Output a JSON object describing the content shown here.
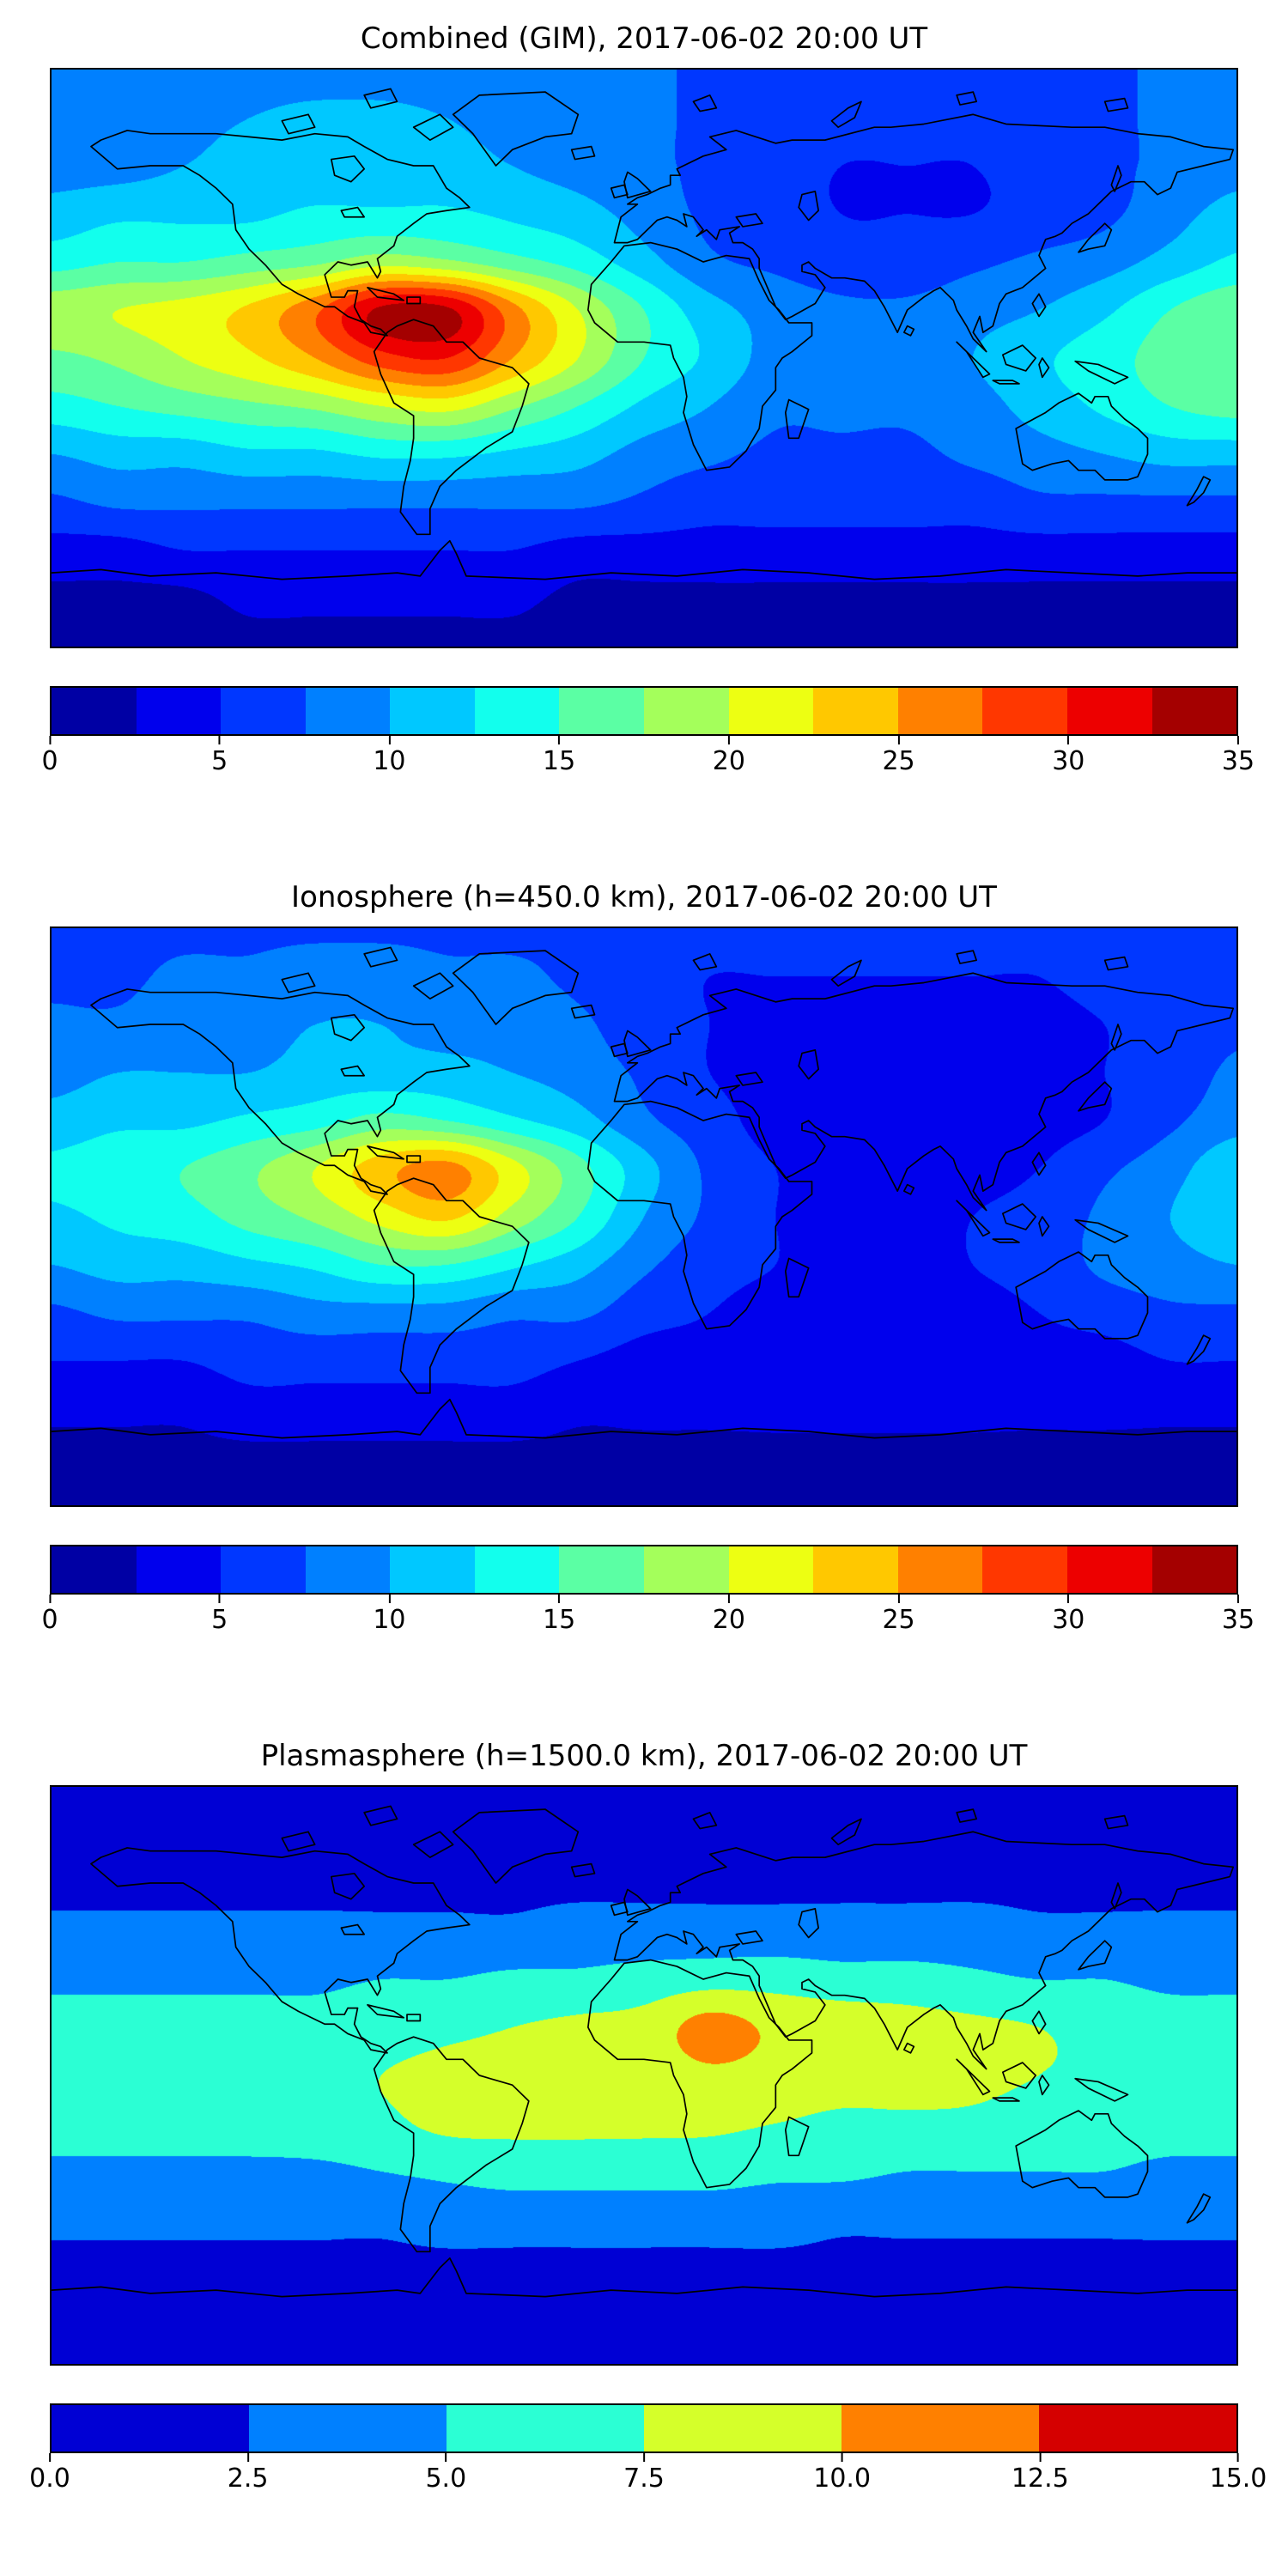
{
  "chart_data": [
    {
      "type": "heatmap",
      "title": "Combined (GIM), 2017-06-02 20:00 UT",
      "colormap": "jet",
      "projection": "equirectangular",
      "levels": {
        "min": 0,
        "max": 35,
        "step": 2.5
      },
      "colorbar_ticks": [
        "0",
        "5",
        "10",
        "15",
        "20",
        "25",
        "30",
        "35"
      ],
      "lon": [
        -180,
        -160,
        -140,
        -120,
        -100,
        -80,
        -60,
        -40,
        -20,
        0,
        20,
        40,
        60,
        80,
        100,
        120,
        140,
        160,
        180
      ],
      "lat": [
        90,
        75,
        60,
        45,
        30,
        15,
        0,
        -15,
        -30,
        -45,
        -60,
        -75,
        -90
      ],
      "values": [
        [
          8,
          8,
          8,
          8,
          8,
          8,
          8,
          8,
          8,
          8,
          7,
          7,
          7,
          7,
          7,
          7,
          7,
          8,
          8
        ],
        [
          8,
          8,
          9,
          10,
          11,
          11,
          10,
          9,
          8,
          8,
          7,
          7,
          6,
          6,
          6,
          7,
          7,
          8,
          8
        ],
        [
          9,
          9,
          10,
          11,
          11,
          11,
          11,
          10,
          9,
          8,
          7,
          6,
          5,
          5,
          5,
          6,
          7,
          8,
          9
        ],
        [
          11,
          12,
          12,
          12,
          13,
          13,
          13,
          12,
          11,
          9,
          7,
          6,
          5,
          5,
          5,
          6,
          7,
          9,
          11
        ],
        [
          14,
          15,
          15,
          16,
          17,
          19,
          18,
          16,
          14,
          11,
          8,
          7,
          6,
          6,
          7,
          8,
          9,
          11,
          13
        ],
        [
          19,
          20,
          21,
          23,
          27,
          33,
          33,
          26,
          20,
          15,
          11,
          9,
          8,
          8,
          9,
          10,
          12,
          15,
          17
        ],
        [
          17,
          18,
          20,
          22,
          25,
          29,
          30,
          25,
          20,
          15,
          12,
          9,
          8,
          9,
          10,
          12,
          14,
          16,
          17
        ],
        [
          14,
          15,
          16,
          17,
          18,
          20,
          21,
          18,
          15,
          12,
          10,
          8,
          8,
          8,
          9,
          11,
          13,
          15,
          16
        ],
        [
          10,
          11,
          11,
          12,
          12,
          13,
          13,
          12,
          11,
          9,
          8,
          7,
          7,
          7,
          8,
          9,
          10,
          11,
          11
        ],
        [
          7,
          8,
          8,
          8,
          8,
          8,
          8,
          8,
          8,
          7,
          6,
          6,
          6,
          6,
          6,
          7,
          7,
          7,
          7
        ],
        [
          4,
          4,
          5,
          5,
          5,
          5,
          5,
          5,
          4,
          4,
          4,
          4,
          4,
          4,
          4,
          4,
          4,
          4,
          4
        ],
        [
          2,
          2,
          2,
          3,
          3,
          3,
          3,
          3,
          2,
          2,
          2,
          2,
          2,
          2,
          2,
          2,
          2,
          2,
          2
        ],
        [
          2,
          2,
          2,
          2,
          2,
          2,
          2,
          2,
          2,
          2,
          2,
          2,
          2,
          2,
          2,
          2,
          2,
          2,
          2
        ]
      ]
    },
    {
      "type": "heatmap",
      "title": "Ionosphere  (h=450.0 km), 2017-06-02 20:00 UT",
      "colormap": "jet",
      "projection": "equirectangular",
      "levels": {
        "min": 0,
        "max": 35,
        "step": 2.5
      },
      "colorbar_ticks": [
        "0",
        "5",
        "10",
        "15",
        "20",
        "25",
        "30",
        "35"
      ],
      "lon": [
        -180,
        -160,
        -140,
        -120,
        -100,
        -80,
        -60,
        -40,
        -20,
        0,
        20,
        40,
        60,
        80,
        100,
        120,
        140,
        160,
        180
      ],
      "lat": [
        90,
        75,
        60,
        45,
        30,
        15,
        0,
        -15,
        -30,
        -45,
        -60,
        -75,
        -90
      ],
      "values": [
        [
          7,
          7,
          7,
          7,
          7,
          7,
          7,
          7,
          7,
          6,
          6,
          6,
          6,
          6,
          6,
          6,
          6,
          7,
          7
        ],
        [
          7,
          7,
          8,
          8,
          9,
          9,
          8,
          8,
          7,
          6,
          5,
          5,
          5,
          5,
          5,
          5,
          6,
          6,
          7
        ],
        [
          8,
          8,
          9,
          9,
          10,
          10,
          9,
          9,
          8,
          6,
          5,
          4,
          4,
          4,
          4,
          4,
          5,
          6,
          7
        ],
        [
          9,
          10,
          10,
          10,
          11,
          11,
          11,
          10,
          9,
          7,
          5,
          4,
          3,
          3,
          3,
          4,
          5,
          6,
          8
        ],
        [
          11,
          12,
          12,
          13,
          14,
          16,
          15,
          13,
          11,
          8,
          6,
          4,
          3,
          3,
          3,
          4,
          5,
          7,
          9
        ],
        [
          13,
          14,
          15,
          17,
          20,
          24,
          26,
          21,
          16,
          11,
          7,
          5,
          4,
          4,
          4,
          5,
          7,
          9,
          12
        ],
        [
          12,
          13,
          14,
          16,
          18,
          21,
          23,
          19,
          15,
          10,
          7,
          5,
          4,
          4,
          5,
          6,
          8,
          10,
          12
        ],
        [
          10,
          11,
          11,
          12,
          13,
          15,
          15,
          13,
          11,
          8,
          6,
          5,
          4,
          4,
          5,
          6,
          8,
          9,
          10
        ],
        [
          7,
          8,
          8,
          8,
          9,
          9,
          9,
          8,
          8,
          6,
          5,
          4,
          4,
          4,
          4,
          5,
          6,
          7,
          7
        ],
        [
          5,
          5,
          5,
          6,
          6,
          6,
          6,
          6,
          5,
          4,
          4,
          3,
          3,
          3,
          3,
          4,
          4,
          5,
          5
        ],
        [
          3,
          3,
          3,
          4,
          4,
          4,
          4,
          4,
          3,
          3,
          3,
          3,
          3,
          3,
          3,
          3,
          3,
          3,
          3
        ],
        [
          2,
          2,
          2,
          2,
          2,
          2,
          2,
          2,
          2,
          2,
          2,
          2,
          2,
          2,
          2,
          2,
          2,
          2,
          2
        ],
        [
          2,
          2,
          2,
          2,
          2,
          2,
          2,
          2,
          2,
          2,
          2,
          2,
          2,
          2,
          2,
          2,
          2,
          2,
          2
        ]
      ]
    },
    {
      "type": "heatmap",
      "title": "Plasmasphere (h=1500.0 km), 2017-06-02 20:00 UT",
      "colormap": "jet",
      "projection": "equirectangular",
      "levels": {
        "min": 0,
        "max": 15,
        "step": 2.5
      },
      "colorbar_ticks": [
        "0.0",
        "2.5",
        "5.0",
        "7.5",
        "10.0",
        "12.5",
        "15.0"
      ],
      "lon": [
        -180,
        -160,
        -140,
        -120,
        -100,
        -80,
        -60,
        -40,
        -20,
        0,
        20,
        40,
        60,
        80,
        100,
        120,
        140,
        160,
        180
      ],
      "lat": [
        90,
        75,
        60,
        45,
        30,
        15,
        0,
        -15,
        -30,
        -45,
        -60,
        -75,
        -90
      ],
      "values": [
        [
          1.5,
          1.5,
          1.5,
          1.5,
          1.5,
          1.5,
          1.5,
          1.5,
          1.5,
          1.5,
          1.5,
          1.5,
          1.5,
          1.5,
          1.5,
          1.5,
          1.5,
          1.5,
          1.5
        ],
        [
          1.5,
          1.5,
          1.5,
          1.5,
          1.5,
          1.5,
          1.5,
          1.5,
          1.5,
          1.5,
          1.5,
          1.5,
          1.5,
          1.5,
          1.5,
          1.5,
          1.5,
          1.5,
          1.5
        ],
        [
          2,
          2,
          2,
          2,
          2,
          2,
          2,
          2,
          2,
          2,
          2,
          2,
          2,
          2,
          2,
          2,
          2,
          2,
          2
        ],
        [
          3,
          3,
          3,
          3,
          3,
          3,
          3,
          3,
          3.5,
          3.5,
          3.5,
          3.5,
          3.5,
          3.5,
          3.5,
          3,
          3,
          3,
          3
        ],
        [
          4.5,
          4.5,
          4.5,
          4.5,
          4.5,
          5,
          5,
          5.5,
          5.5,
          6,
          6.5,
          6.5,
          6,
          6,
          5.5,
          5,
          5,
          4.5,
          4.5
        ],
        [
          6,
          6,
          6,
          6,
          6,
          6.5,
          7,
          7.5,
          8,
          8.5,
          11,
          9.5,
          9,
          8.5,
          8,
          7.5,
          6.5,
          6,
          6
        ],
        [
          6.5,
          6.5,
          6.5,
          6.5,
          7,
          7.5,
          8,
          8,
          8,
          8.5,
          9.5,
          9,
          8.5,
          8.5,
          8,
          7.5,
          7,
          6.5,
          6.5
        ],
        [
          6,
          6,
          6,
          6,
          6.5,
          7,
          8,
          8,
          8,
          8,
          8,
          7.5,
          7,
          7,
          7,
          6.5,
          6,
          6,
          6
        ],
        [
          4.5,
          4.5,
          4.5,
          4.5,
          4.5,
          5,
          5.5,
          6,
          6,
          6,
          6,
          5.5,
          5.5,
          5,
          5,
          5,
          5,
          4.5,
          4.5
        ],
        [
          3,
          3,
          3,
          3,
          3,
          3,
          3.5,
          3.5,
          3.5,
          3.5,
          3.5,
          3.5,
          3,
          3,
          3,
          3,
          3,
          3,
          3
        ],
        [
          2,
          2,
          2,
          2,
          2,
          2,
          2,
          2,
          2,
          2,
          2,
          2,
          2,
          2,
          2,
          2,
          2,
          2,
          2
        ],
        [
          1.5,
          1.5,
          1.5,
          1.5,
          1.5,
          1.5,
          1.5,
          1.5,
          1.5,
          1.5,
          1.5,
          1.5,
          1.5,
          1.5,
          1.5,
          1.5,
          1.5,
          1.5,
          1.5
        ],
        [
          1.5,
          1.5,
          1.5,
          1.5,
          1.5,
          1.5,
          1.5,
          1.5,
          1.5,
          1.5,
          1.5,
          1.5,
          1.5,
          1.5,
          1.5,
          1.5,
          1.5,
          1.5,
          1.5
        ]
      ]
    }
  ]
}
